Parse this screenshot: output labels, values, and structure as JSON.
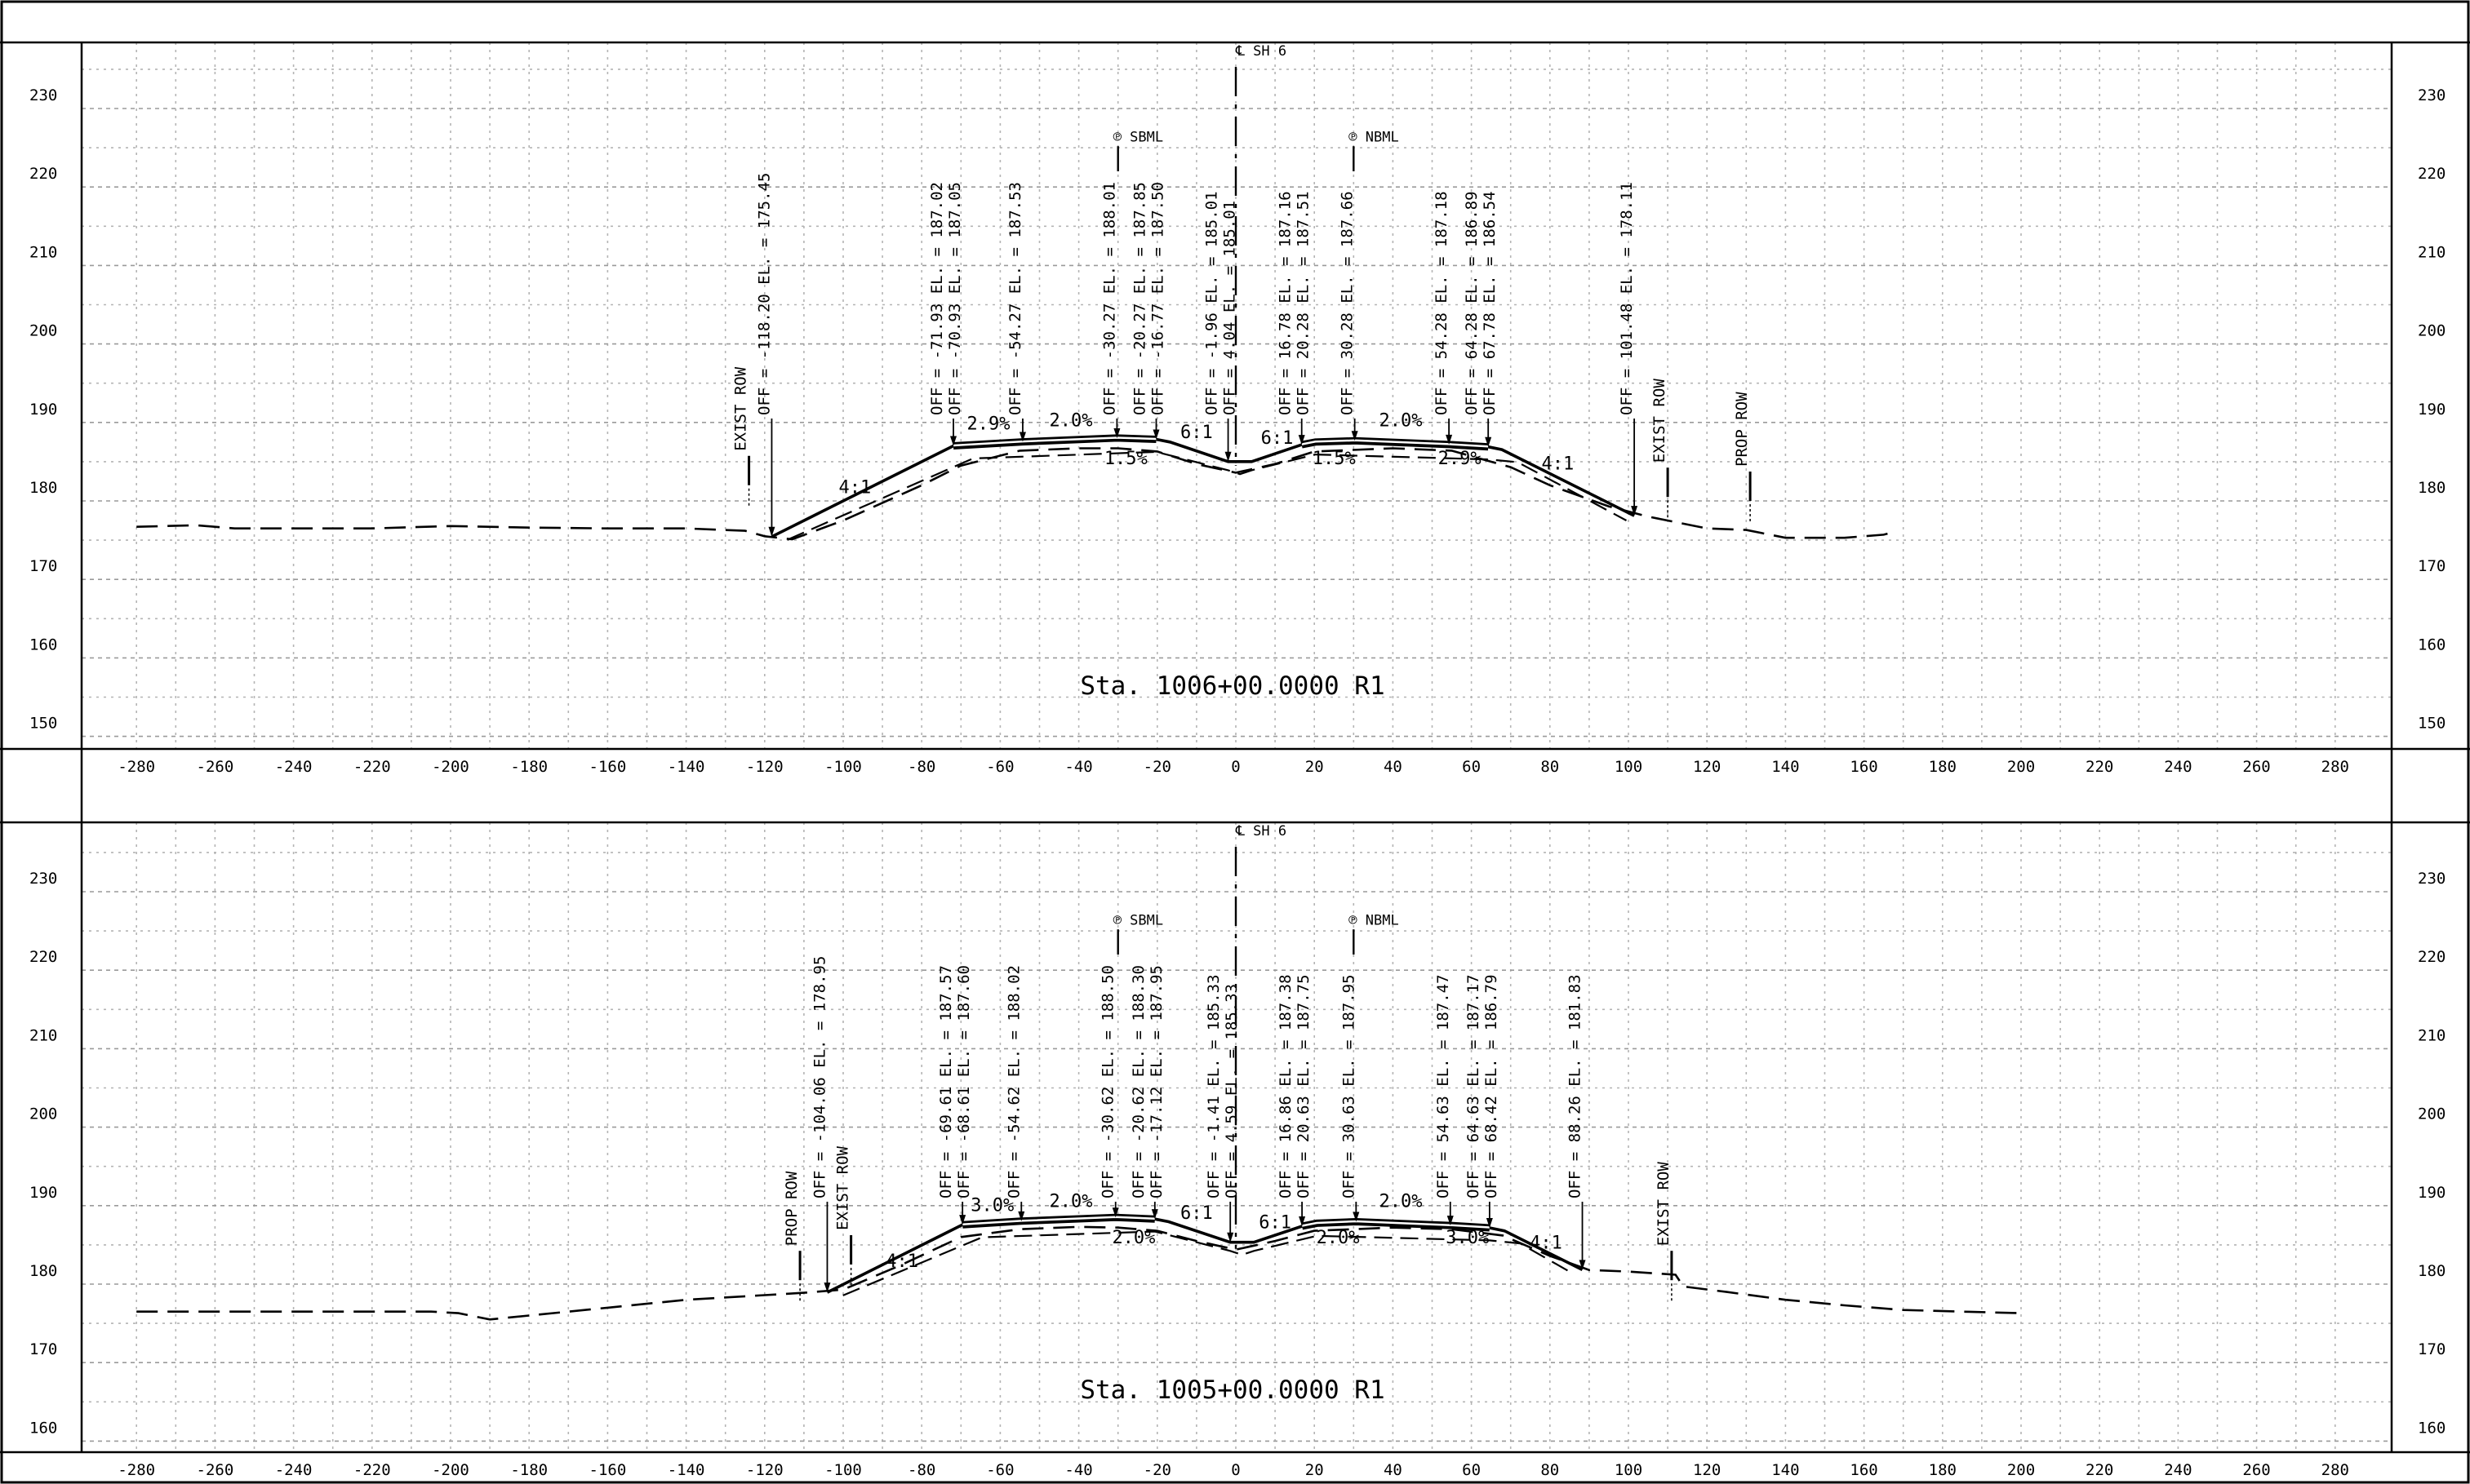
{
  "sheet": {
    "elevation_ticks_top": [
      230,
      220,
      210,
      200,
      190,
      180,
      170,
      160,
      150
    ],
    "elevation_ticks_bottom": [
      230,
      220,
      210,
      200,
      190,
      180,
      170,
      160
    ],
    "offset_ticks": [
      "-280",
      "-260",
      "-240",
      "-220",
      "-200",
      "-180",
      "-160",
      "-140",
      "-120",
      "-100",
      "-80",
      "-60",
      "-40",
      "-20",
      "0",
      "20",
      "40",
      "60",
      "80",
      "100",
      "120",
      "140",
      "160",
      "180",
      "200",
      "220",
      "240",
      "260",
      "280"
    ]
  },
  "sections": [
    {
      "station_label": "Sta. 1006+00.0000 R1",
      "centerline_label": "℄ SH 6",
      "baseline_labels": {
        "sbml": "℗ SBML",
        "nbml": "℗ NBML"
      },
      "existing_ground": [
        [
          -280,
          176.7
        ],
        [
          -265,
          176.9
        ],
        [
          -255,
          176.5
        ],
        [
          -240,
          176.5
        ],
        [
          -220,
          176.5
        ],
        [
          -200,
          176.8
        ],
        [
          -180,
          176.6
        ],
        [
          -160,
          176.5
        ],
        [
          -140,
          176.5
        ],
        [
          -125,
          176.2
        ],
        [
          -120,
          175.5
        ],
        [
          -113,
          175.1
        ],
        [
          -100,
          177.5
        ],
        [
          -80,
          182
        ],
        [
          -70,
          184.5
        ],
        [
          -55,
          186.4
        ],
        [
          -40,
          186.7
        ],
        [
          -30,
          186.7
        ],
        [
          -20,
          186.3
        ],
        [
          -10,
          184.7
        ],
        [
          0,
          183.6
        ],
        [
          10,
          184.7
        ],
        [
          20,
          186.3
        ],
        [
          40,
          186.7
        ],
        [
          55,
          186.4
        ],
        [
          70,
          184.3
        ],
        [
          80,
          182
        ],
        [
          95,
          179.3
        ],
        [
          105,
          178
        ],
        [
          120,
          176.5
        ],
        [
          130,
          176.3
        ],
        [
          140,
          175.3
        ],
        [
          155,
          175.3
        ],
        [
          165,
          175.7
        ],
        [
          168,
          176.1
        ]
      ],
      "finished_grade": [
        [
          -118.2,
          175.45
        ],
        [
          -71.93,
          187.02
        ],
        [
          -54.27,
          187.53
        ],
        [
          -30.27,
          188.01
        ],
        [
          -20.27,
          187.85
        ],
        [
          -16.77,
          187.5
        ],
        [
          -1.96,
          185.01
        ],
        [
          4.04,
          185.01
        ],
        [
          16.78,
          187.16
        ],
        [
          20.28,
          187.51
        ],
        [
          30.28,
          187.66
        ],
        [
          54.28,
          187.18
        ],
        [
          64.28,
          186.89
        ],
        [
          67.78,
          186.54
        ],
        [
          101.48,
          178.11
        ]
      ],
      "callouts": [
        {
          "off": -118.2,
          "tip": 175.45,
          "lines": [
            "OFF = -118.20 EL. = 175.45"
          ]
        },
        {
          "off": -71.93,
          "tip": 187.02,
          "lines": [
            "OFF = -71.93  EL. = 187.02",
            "OFF = -70.93  EL. = 187.05"
          ]
        },
        {
          "off": -54.27,
          "tip": 187.53,
          "lines": [
            "OFF = -54.27  EL. = 187.53"
          ]
        },
        {
          "off": -30.27,
          "tip": 188.01,
          "lines": [
            "OFF = -30.27  EL. = 188.01"
          ]
        },
        {
          "off": -20.27,
          "tip": 187.85,
          "lines": [
            "OFF = -20.27  EL. = 187.85",
            "OFF = -16.77  EL. = 187.50"
          ]
        },
        {
          "off": -1.96,
          "tip": 185.01,
          "lines": [
            "OFF = -1.96  EL. = 185.01",
            "OFF = 4.04  EL. = 185.01"
          ]
        },
        {
          "off": 16.78,
          "tip": 187.16,
          "lines": [
            "OFF = 16.78  EL. = 187.16",
            "OFF = 20.28  EL. = 187.51"
          ]
        },
        {
          "off": 30.28,
          "tip": 187.66,
          "lines": [
            "OFF = 30.28  EL. = 187.66"
          ]
        },
        {
          "off": 54.28,
          "tip": 187.18,
          "lines": [
            "OFF = 54.28  EL. = 187.18"
          ]
        },
        {
          "off": 64.28,
          "tip": 186.89,
          "lines": [
            "OFF = 64.28  EL. = 186.89",
            "OFF = 67.78  EL. = 186.54"
          ]
        },
        {
          "off": 101.48,
          "tip": 178.11,
          "lines": [
            "OFF = 101.48  EL. = 178.11"
          ]
        }
      ],
      "row_markers": [
        {
          "off": -124,
          "base": 182,
          "text": "EXIST ROW"
        },
        {
          "off": 110,
          "base": 180.5,
          "text": "EXIST ROW"
        },
        {
          "off": 131,
          "base": 180,
          "text": "PROP ROW"
        }
      ],
      "slope_labels": [
        {
          "off": -97,
          "elev": 181,
          "text": "4:1"
        },
        {
          "off": -63,
          "elev": 189.1,
          "text": "2.9%"
        },
        {
          "off": -42,
          "elev": 189.5,
          "text": "2.0%"
        },
        {
          "off": -28,
          "elev": 184.7,
          "text": "1.5%"
        },
        {
          "off": -10,
          "elev": 188,
          "text": "6:1"
        },
        {
          "off": 10.5,
          "elev": 187.3,
          "text": "6:1"
        },
        {
          "off": 25,
          "elev": 184.7,
          "text": "1.5%"
        },
        {
          "off": 42,
          "elev": 189.5,
          "text": "2.0%"
        },
        {
          "off": 57,
          "elev": 184.7,
          "text": "2.9%"
        },
        {
          "off": 82,
          "elev": 184,
          "text": "4:1"
        }
      ]
    },
    {
      "station_label": "Sta. 1005+00.0000 R1",
      "centerline_label": "℄ SH 6",
      "baseline_labels": {
        "sbml": "℗ SBML",
        "nbml": "℗ NBML"
      },
      "existing_ground": [
        [
          -280,
          176.5
        ],
        [
          -260,
          176.5
        ],
        [
          -240,
          176.5
        ],
        [
          -220,
          176.5
        ],
        [
          -205,
          176.5
        ],
        [
          -198,
          176.3
        ],
        [
          -190,
          175.5
        ],
        [
          -180,
          176
        ],
        [
          -160,
          177
        ],
        [
          -140,
          178
        ],
        [
          -120,
          178.6
        ],
        [
          -110,
          178.9
        ],
        [
          -100,
          179.3
        ],
        [
          -85,
          182.5
        ],
        [
          -70,
          186
        ],
        [
          -55,
          187
        ],
        [
          -40,
          187.3
        ],
        [
          -30,
          187.2
        ],
        [
          -20,
          186.8
        ],
        [
          -10,
          185.5
        ],
        [
          0,
          184.4
        ],
        [
          10,
          185.5
        ],
        [
          20,
          186.8
        ],
        [
          40,
          187.2
        ],
        [
          55,
          187
        ],
        [
          68,
          186.2
        ],
        [
          80,
          183.6
        ],
        [
          90,
          181.8
        ],
        [
          100,
          181.6
        ],
        [
          112,
          181.2
        ],
        [
          114,
          179.7
        ],
        [
          125,
          179
        ],
        [
          140,
          178
        ],
        [
          155,
          177.3
        ],
        [
          170,
          176.7
        ],
        [
          185,
          176.5
        ],
        [
          200,
          176.3
        ]
      ],
      "finished_grade": [
        [
          -104.06,
          178.95
        ],
        [
          -69.61,
          187.57
        ],
        [
          -54.62,
          188.02
        ],
        [
          -30.62,
          188.5
        ],
        [
          -20.62,
          188.3
        ],
        [
          -17.12,
          187.95
        ],
        [
          -1.41,
          185.33
        ],
        [
          4.59,
          185.33
        ],
        [
          16.86,
          187.38
        ],
        [
          20.63,
          187.75
        ],
        [
          30.63,
          187.95
        ],
        [
          54.63,
          187.47
        ],
        [
          64.63,
          187.17
        ],
        [
          68.42,
          186.79
        ],
        [
          88.26,
          181.83
        ]
      ],
      "callouts": [
        {
          "off": -104.06,
          "tip": 178.95,
          "lines": [
            "OFF = -104.06 EL. = 178.95"
          ]
        },
        {
          "off": -69.61,
          "tip": 187.57,
          "lines": [
            "OFF = -69.61  EL. = 187.57",
            "OFF = -68.61  EL. = 187.60"
          ]
        },
        {
          "off": -54.62,
          "tip": 188.02,
          "lines": [
            "OFF = -54.62  EL. = 188.02"
          ]
        },
        {
          "off": -30.62,
          "tip": 188.5,
          "lines": [
            "OFF = -30.62  EL. = 188.50"
          ]
        },
        {
          "off": -20.62,
          "tip": 188.3,
          "lines": [
            "OFF = -20.62  EL. = 188.30",
            "OFF = -17.12  EL. = 187.95"
          ]
        },
        {
          "off": -1.41,
          "tip": 185.33,
          "lines": [
            "OFF = -1.41  EL. = 185.33",
            "OFF = 4.59  EL. = 185.33"
          ]
        },
        {
          "off": 16.86,
          "tip": 187.38,
          "lines": [
            "OFF = 16.86  EL. = 187.38",
            "OFF = 20.63  EL. = 187.75"
          ]
        },
        {
          "off": 30.63,
          "tip": 187.95,
          "lines": [
            "OFF = 30.63  EL. = 187.95"
          ]
        },
        {
          "off": 54.63,
          "tip": 187.47,
          "lines": [
            "OFF = 54.63  EL. = 187.47"
          ]
        },
        {
          "off": 64.63,
          "tip": 187.17,
          "lines": [
            "OFF = 64.63  EL. = 187.17",
            "OFF = 68.42  EL. = 186.79"
          ]
        },
        {
          "off": 88.26,
          "tip": 181.83,
          "lines": [
            "OFF = 88.26  EL. = 181.83"
          ]
        }
      ],
      "row_markers": [
        {
          "off": -111,
          "base": 180.5,
          "text": "PROP ROW"
        },
        {
          "off": -98,
          "base": 182.5,
          "text": "EXIST ROW"
        },
        {
          "off": 111,
          "base": 180.5,
          "text": "EXIST ROW"
        }
      ],
      "slope_labels": [
        {
          "off": -85,
          "elev": 182.2,
          "text": "4:1"
        },
        {
          "off": -62,
          "elev": 189.3,
          "text": "3.0%"
        },
        {
          "off": -42,
          "elev": 189.8,
          "text": "2.0%"
        },
        {
          "off": -26,
          "elev": 185.2,
          "text": "2.0%"
        },
        {
          "off": -10,
          "elev": 188.3,
          "text": "6:1"
        },
        {
          "off": 10,
          "elev": 187.1,
          "text": "6:1"
        },
        {
          "off": 26,
          "elev": 185.2,
          "text": "2.0%"
        },
        {
          "off": 42,
          "elev": 189.8,
          "text": "2.0%"
        },
        {
          "off": 59,
          "elev": 185.2,
          "text": "3.0%"
        },
        {
          "off": 79,
          "elev": 184.5,
          "text": "4:1"
        }
      ]
    }
  ]
}
